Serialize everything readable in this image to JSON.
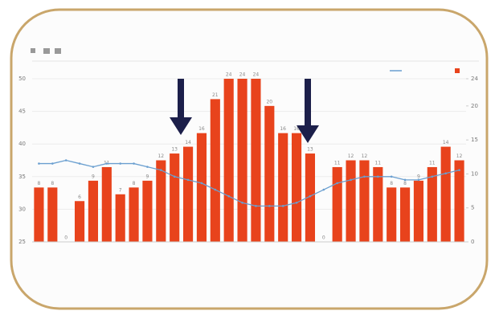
{
  "chart_data": {
    "type": "bar",
    "categories": [
      null,
      null,
      null,
      null,
      null,
      null,
      null,
      null,
      null,
      null,
      null,
      null,
      null,
      null,
      null,
      null,
      null,
      null,
      null,
      null,
      null,
      null,
      null,
      null,
      null,
      null,
      null,
      null,
      null,
      null,
      null,
      null
    ],
    "series": [
      {
        "type": "line",
        "color": "#6a9fd0",
        "values": [
          37,
          37,
          37.5,
          37,
          36.5,
          37,
          37,
          37,
          36.5,
          36,
          35,
          34.5,
          34,
          33,
          32,
          31,
          30.5,
          30.5,
          30.5,
          31,
          32,
          33,
          34,
          34.5,
          35,
          35,
          35,
          34.5,
          34.5,
          35,
          35.5,
          36
        ]
      },
      {
        "type": "bar",
        "axis": "y2",
        "color": "#e8431c",
        "values": [
          8,
          8,
          0,
          6,
          9,
          11,
          7,
          8,
          9,
          12,
          13,
          14,
          16,
          21,
          24,
          24,
          24,
          20,
          16,
          16,
          13,
          0,
          11,
          12,
          12,
          11,
          8,
          8,
          9,
          11,
          14,
          12
        ]
      }
    ],
    "ylim": [
      25,
      50
    ],
    "yticks": [
      25,
      30,
      35,
      40,
      45,
      50
    ],
    "y2lim": [
      0,
      24
    ],
    "y2ticks": [
      0,
      5,
      10,
      15,
      20,
      24
    ],
    "grid": true
  }
}
